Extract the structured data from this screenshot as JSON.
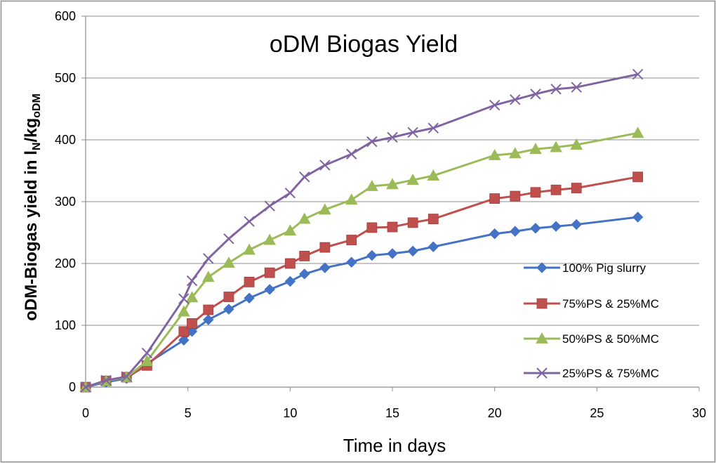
{
  "chart_data": {
    "type": "line",
    "title": "oDM Biogas Yield",
    "xlabel": "Time in days",
    "ylabel": "oDM-Biogas yield in lN/kgoDM",
    "ylabel_parts": {
      "main": "oDM-Biogas yield in l",
      "sub1": "N",
      "mid": "/kg",
      "sub2": "oDM"
    },
    "xlim": [
      0,
      30
    ],
    "ylim": [
      0,
      600
    ],
    "xticks": [
      0,
      5,
      10,
      15,
      20,
      25,
      30
    ],
    "yticks": [
      0,
      100,
      200,
      300,
      400,
      500,
      600
    ],
    "grid": "horizontal",
    "legend_position": "right",
    "x": [
      0,
      1,
      2,
      3,
      4.8,
      5.2,
      6,
      7,
      8,
      9,
      10,
      10.7,
      11.7,
      13,
      14,
      15,
      16,
      17,
      20,
      21,
      22,
      23,
      24,
      27
    ],
    "series": [
      {
        "name": "100% Pig slurry",
        "color": "#4472C4",
        "marker": "diamond",
        "values": [
          0,
          8,
          14,
          38,
          76,
          90,
          109,
          126,
          144,
          158,
          171,
          183,
          193,
          202,
          213,
          216,
          220,
          227,
          248,
          252,
          257,
          260,
          263,
          275
        ]
      },
      {
        "name": "75%PS & 25%MC",
        "color": "#C0504D",
        "marker": "square",
        "values": [
          0,
          10,
          16,
          35,
          90,
          103,
          125,
          146,
          170,
          185,
          200,
          212,
          226,
          238,
          258,
          259,
          266,
          272,
          305,
          309,
          315,
          319,
          322,
          340
        ]
      },
      {
        "name": "50%PS & 50%MC",
        "color": "#9BBB59",
        "marker": "triangle",
        "values": [
          0,
          10,
          16,
          42,
          122,
          145,
          178,
          201,
          222,
          238,
          253,
          272,
          287,
          303,
          325,
          328,
          335,
          342,
          375,
          378,
          385,
          388,
          392,
          411
        ]
      },
      {
        "name": "25%PS & 75%MC",
        "color": "#8064A2",
        "marker": "x",
        "values": [
          0,
          11,
          17,
          55,
          143,
          172,
          208,
          240,
          268,
          293,
          314,
          340,
          359,
          377,
          397,
          404,
          412,
          419,
          456,
          465,
          474,
          482,
          485,
          506
        ]
      }
    ]
  }
}
